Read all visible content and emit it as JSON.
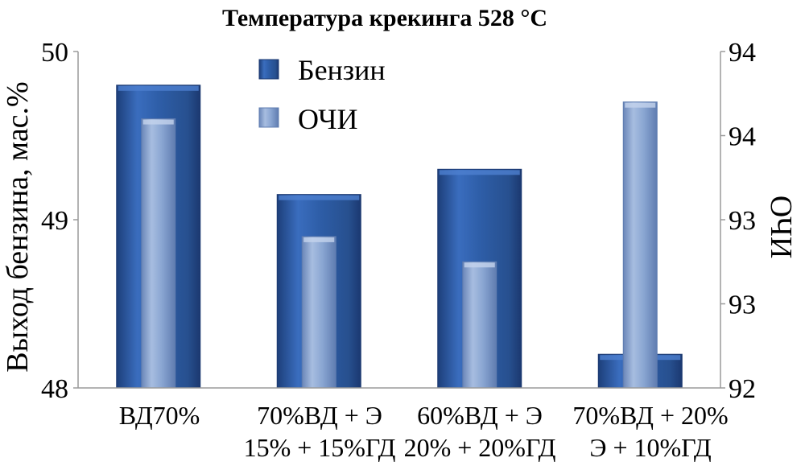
{
  "chart_data": {
    "type": "bar",
    "title": "Температура крекинга 528 °С",
    "categories": [
      [
        "ВД70%"
      ],
      [
        "70%ВД + Э",
        "15% + 15%ГД"
      ],
      [
        "60%ВД + Э",
        "20% + 20%ГД"
      ],
      [
        "70%ВД + 20%",
        "Э + 10%ГД"
      ]
    ],
    "ylabel": "Выход бензина, мас.%",
    "y2label": "ОЧИ",
    "ylim": [
      48,
      50
    ],
    "y2lim": [
      92,
      94
    ],
    "yticks": [
      "48",
      "49",
      "50"
    ],
    "y2ticks": [
      "92",
      "93",
      "93",
      "94",
      "94"
    ],
    "series": [
      {
        "name": "Бензин",
        "axis": "left",
        "color": "#2e5ea8",
        "values": [
          49.8,
          49.15,
          49.3,
          48.2
        ]
      },
      {
        "name": "ОЧИ",
        "axis": "right",
        "color": "#8aa6d2",
        "values": [
          93.6,
          92.9,
          92.75,
          93.7
        ]
      }
    ],
    "legend": "top-center",
    "grid": false
  }
}
